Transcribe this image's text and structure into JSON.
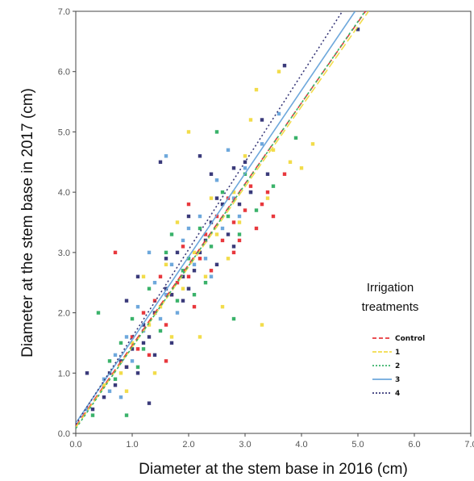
{
  "chart_data": {
    "type": "scatter",
    "xlabel": "Diameter at the stem base in 2016 (cm)",
    "ylabel": "Diameter at the stem base in 2017 (cm)",
    "xlim": [
      0,
      7
    ],
    "ylim": [
      0,
      7
    ],
    "x_ticks": [
      "0.0",
      "1.0",
      "2.0",
      "3.0",
      "4.0",
      "5.0",
      "6.0",
      "7.0"
    ],
    "y_ticks": [
      "0.0",
      "1.0",
      "2.0",
      "3.0",
      "4.0",
      "5.0",
      "6.0",
      "7.0"
    ],
    "grid": false,
    "legend": {
      "title_line1": "Irrigation",
      "title_line2": "treatments",
      "placement": "right"
    },
    "series": [
      {
        "name": "Control",
        "color": "#e8383d",
        "dash": "8,5",
        "fit": {
          "intercept": 0.12,
          "slope": 1.34
        },
        "points": [
          [
            0.7,
            3.0
          ],
          [
            1.0,
            1.6
          ],
          [
            1.2,
            2.0
          ],
          [
            1.4,
            2.2
          ],
          [
            1.6,
            1.8
          ],
          [
            1.8,
            2.5
          ],
          [
            2.0,
            3.8
          ],
          [
            2.0,
            2.6
          ],
          [
            2.2,
            2.9
          ],
          [
            2.3,
            3.3
          ],
          [
            2.5,
            3.6
          ],
          [
            2.6,
            3.2
          ],
          [
            2.7,
            3.9
          ],
          [
            2.8,
            3.5
          ],
          [
            3.0,
            3.7
          ],
          [
            3.1,
            4.1
          ],
          [
            3.2,
            3.4
          ],
          [
            3.4,
            4.0
          ],
          [
            3.5,
            3.6
          ],
          [
            3.7,
            4.3
          ],
          [
            1.3,
            1.3
          ],
          [
            1.5,
            2.6
          ],
          [
            1.7,
            2.3
          ],
          [
            1.9,
            3.1
          ],
          [
            2.1,
            2.1
          ],
          [
            0.9,
            1.1
          ],
          [
            1.1,
            1.4
          ],
          [
            2.4,
            2.7
          ],
          [
            2.9,
            3.2
          ],
          [
            1.6,
            1.2
          ],
          [
            2.8,
            3.0
          ],
          [
            3.3,
            3.8
          ]
        ]
      },
      {
        "name": "1",
        "color": "#f2dc4a",
        "dash": "9,4",
        "fit": {
          "intercept": 0.1,
          "slope": 1.33
        },
        "points": [
          [
            0.5,
            0.8
          ],
          [
            0.8,
            1.0
          ],
          [
            1.0,
            1.5
          ],
          [
            1.3,
            1.8
          ],
          [
            1.5,
            2.1
          ],
          [
            1.7,
            1.6
          ],
          [
            1.9,
            2.4
          ],
          [
            2.1,
            3.0
          ],
          [
            2.3,
            2.6
          ],
          [
            2.5,
            3.3
          ],
          [
            2.7,
            2.9
          ],
          [
            2.9,
            3.5
          ],
          [
            3.0,
            4.6
          ],
          [
            3.1,
            5.2
          ],
          [
            3.2,
            5.7
          ],
          [
            3.3,
            1.8
          ],
          [
            3.5,
            4.7
          ],
          [
            3.6,
            6.0
          ],
          [
            3.8,
            4.5
          ],
          [
            4.0,
            4.4
          ],
          [
            4.2,
            4.8
          ],
          [
            2.2,
            1.6
          ],
          [
            2.0,
            5.0
          ],
          [
            1.8,
            3.5
          ],
          [
            1.2,
            2.6
          ],
          [
            1.4,
            1.0
          ],
          [
            2.6,
            2.1
          ],
          [
            2.8,
            4.0
          ],
          [
            3.4,
            3.9
          ],
          [
            1.6,
            2.8
          ],
          [
            2.4,
            3.9
          ],
          [
            0.9,
            0.7
          ]
        ]
      },
      {
        "name": "2",
        "color": "#3ab26a",
        "dash": "3,3",
        "fit": {
          "intercept": 0.08,
          "slope": 1.35
        },
        "points": [
          [
            0.3,
            0.3
          ],
          [
            0.4,
            2.0
          ],
          [
            0.6,
            1.2
          ],
          [
            0.8,
            1.5
          ],
          [
            0.9,
            0.3
          ],
          [
            1.0,
            1.9
          ],
          [
            1.2,
            1.4
          ],
          [
            1.3,
            2.4
          ],
          [
            1.5,
            1.7
          ],
          [
            1.6,
            3.0
          ],
          [
            1.8,
            2.2
          ],
          [
            2.0,
            2.9
          ],
          [
            2.2,
            3.4
          ],
          [
            2.4,
            3.1
          ],
          [
            2.5,
            5.0
          ],
          [
            2.6,
            4.0
          ],
          [
            2.7,
            3.6
          ],
          [
            2.8,
            1.9
          ],
          [
            3.0,
            4.3
          ],
          [
            3.2,
            3.7
          ],
          [
            3.5,
            4.1
          ],
          [
            3.9,
            4.9
          ],
          [
            1.1,
            1.1
          ],
          [
            1.4,
            2.0
          ],
          [
            1.9,
            2.7
          ],
          [
            2.3,
            2.5
          ],
          [
            2.9,
            3.3
          ],
          [
            0.7,
            0.9
          ],
          [
            1.7,
            3.3
          ],
          [
            2.1,
            2.3
          ]
        ]
      },
      {
        "name": "3",
        "color": "#6ea8dc",
        "dash": "",
        "fit": {
          "intercept": 0.17,
          "slope": 1.38
        },
        "points": [
          [
            0.2,
            0.4
          ],
          [
            0.5,
            0.9
          ],
          [
            0.7,
            1.3
          ],
          [
            0.9,
            1.6
          ],
          [
            1.1,
            2.1
          ],
          [
            1.2,
            1.7
          ],
          [
            1.4,
            2.5
          ],
          [
            1.6,
            4.6
          ],
          [
            1.7,
            2.8
          ],
          [
            1.9,
            3.2
          ],
          [
            2.0,
            2.4
          ],
          [
            2.2,
            3.6
          ],
          [
            2.3,
            2.9
          ],
          [
            2.5,
            4.2
          ],
          [
            2.6,
            3.4
          ],
          [
            2.8,
            3.9
          ],
          [
            3.0,
            4.4
          ],
          [
            3.3,
            4.8
          ],
          [
            3.6,
            5.3
          ],
          [
            1.3,
            3.0
          ],
          [
            0.8,
            0.6
          ],
          [
            1.8,
            2.0
          ],
          [
            2.4,
            2.6
          ],
          [
            2.7,
            4.7
          ],
          [
            1.0,
            1.2
          ],
          [
            1.5,
            1.9
          ],
          [
            2.1,
            2.8
          ],
          [
            2.9,
            3.6
          ],
          [
            3.1,
            4.0
          ],
          [
            0.6,
            0.7
          ],
          [
            1.6,
            2.3
          ],
          [
            2.0,
            3.4
          ]
        ]
      },
      {
        "name": "4",
        "color": "#3a3a7a",
        "dash": "2,3",
        "fit": {
          "intercept": 0.15,
          "slope": 1.45
        },
        "points": [
          [
            0.2,
            1.0
          ],
          [
            0.3,
            0.4
          ],
          [
            0.5,
            0.6
          ],
          [
            0.6,
            1.0
          ],
          [
            0.8,
            1.2
          ],
          [
            0.9,
            2.2
          ],
          [
            1.0,
            1.4
          ],
          [
            1.1,
            2.6
          ],
          [
            1.2,
            1.8
          ],
          [
            1.3,
            0.5
          ],
          [
            1.4,
            2.0
          ],
          [
            1.5,
            4.5
          ],
          [
            1.6,
            2.4
          ],
          [
            1.7,
            1.5
          ],
          [
            1.8,
            3.0
          ],
          [
            1.9,
            2.2
          ],
          [
            2.0,
            3.6
          ],
          [
            2.1,
            2.7
          ],
          [
            2.2,
            4.6
          ],
          [
            2.3,
            3.2
          ],
          [
            2.4,
            4.3
          ],
          [
            2.5,
            2.8
          ],
          [
            2.6,
            3.8
          ],
          [
            2.8,
            4.4
          ],
          [
            3.0,
            4.5
          ],
          [
            3.1,
            4.0
          ],
          [
            3.3,
            5.2
          ],
          [
            3.4,
            4.3
          ],
          [
            3.7,
            6.1
          ],
          [
            5.0,
            6.7
          ],
          [
            0.7,
            0.8
          ],
          [
            1.3,
            1.6
          ],
          [
            1.6,
            2.9
          ],
          [
            1.9,
            2.6
          ],
          [
            2.2,
            3.0
          ],
          [
            2.4,
            3.5
          ],
          [
            2.7,
            3.3
          ],
          [
            2.9,
            3.8
          ],
          [
            1.1,
            1.0
          ],
          [
            0.9,
            1.1
          ],
          [
            1.4,
            1.3
          ],
          [
            2.0,
            2.4
          ],
          [
            2.5,
            3.9
          ],
          [
            1.7,
            2.3
          ],
          [
            1.2,
            1.5
          ],
          [
            2.8,
            3.1
          ]
        ]
      }
    ]
  }
}
